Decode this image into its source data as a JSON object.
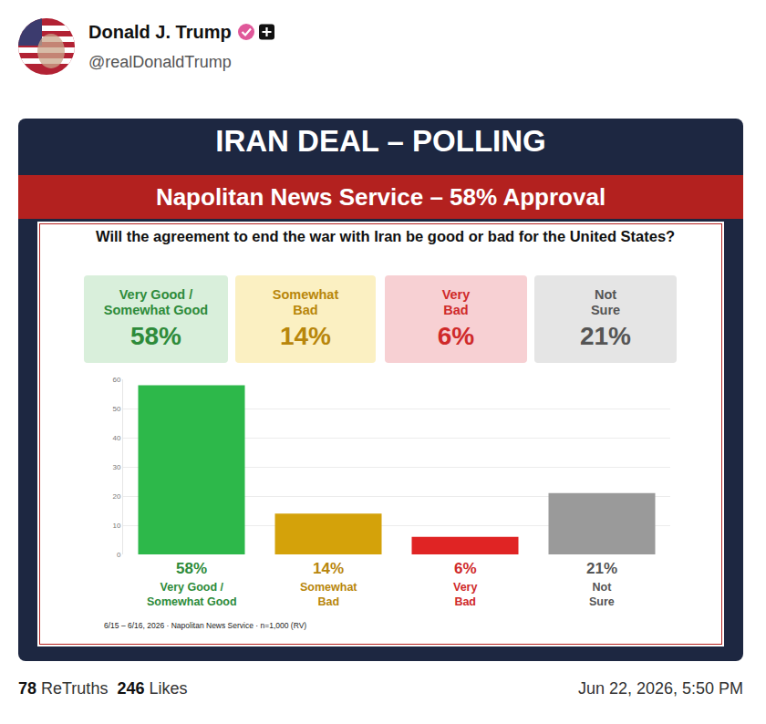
{
  "post": {
    "author": "Donald J. Trump",
    "handle": "@realDonaldTrump",
    "retruths": 78,
    "retruths_label": "ReTruths",
    "likes": 246,
    "likes_label": "Likes",
    "date": "Jun 22, 2026, 5:50 PM"
  },
  "chart_data": {
    "type": "bar",
    "title": "IRAN DEAL – POLLING",
    "subtitle": "Napolitan News Service – 58% Approval",
    "question": "Will the agreement to end the war with Iran be good or bad for the United States?",
    "categories": [
      "Very Good / Somewhat Good",
      "Somewhat Bad",
      "Very Bad",
      "Not Sure"
    ],
    "values": [
      58,
      14,
      6,
      21
    ],
    "value_labels": [
      "58%",
      "14%",
      "6%",
      "21%"
    ],
    "colors": [
      "#2db84a",
      "#d4a20a",
      "#e02424",
      "#9a9a9a"
    ],
    "ylim": [
      0,
      60
    ],
    "yticks": [
      0,
      10,
      20,
      30,
      40,
      50,
      60
    ],
    "grid": true,
    "data_labels": true,
    "tick_labels": "y",
    "source": "6/15 – 6/16, 2026 · Napolitan News Service · n=1,000 (RV)"
  }
}
